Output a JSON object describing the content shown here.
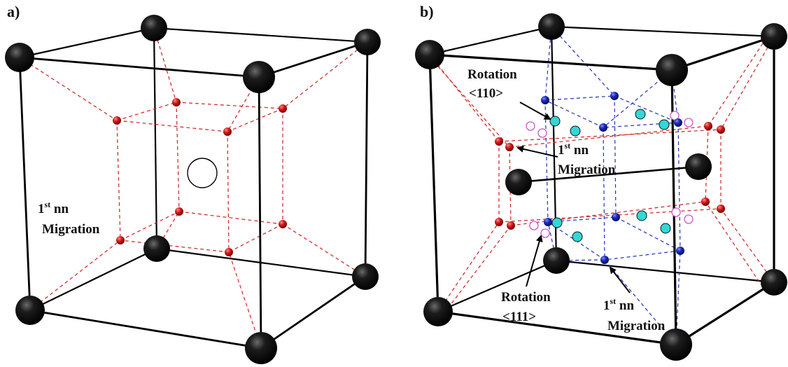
{
  "colors": {
    "cube_edge": "#000000",
    "host_atom": "#0d0d0d",
    "octahedral_site": "#cc1a1a",
    "tetrahedral_site": "#1f2fbf",
    "cyan_site": "#35d6d6",
    "empty_site": "#cc55cc",
    "red_dash": "#cc2222",
    "blue_dash": "#2233bb"
  },
  "panel_a": {
    "label": "a)",
    "migration_label": {
      "prefix": "1",
      "superscript": "st",
      "suffix": " nn",
      "line2": "Migration"
    }
  },
  "panel_b": {
    "label": "b)",
    "rotation_110": {
      "line1": "Rotation",
      "line2": "<110>"
    },
    "migration_mid": {
      "prefix": "1",
      "superscript": "st",
      "suffix": " nn",
      "line2": "Migration"
    },
    "rotation_111": {
      "line1": "Rotation",
      "line2": "<111>"
    },
    "migration_bottom": {
      "prefix": "1",
      "superscript": "st",
      "suffix": " nn",
      "line2": "Migration"
    }
  }
}
